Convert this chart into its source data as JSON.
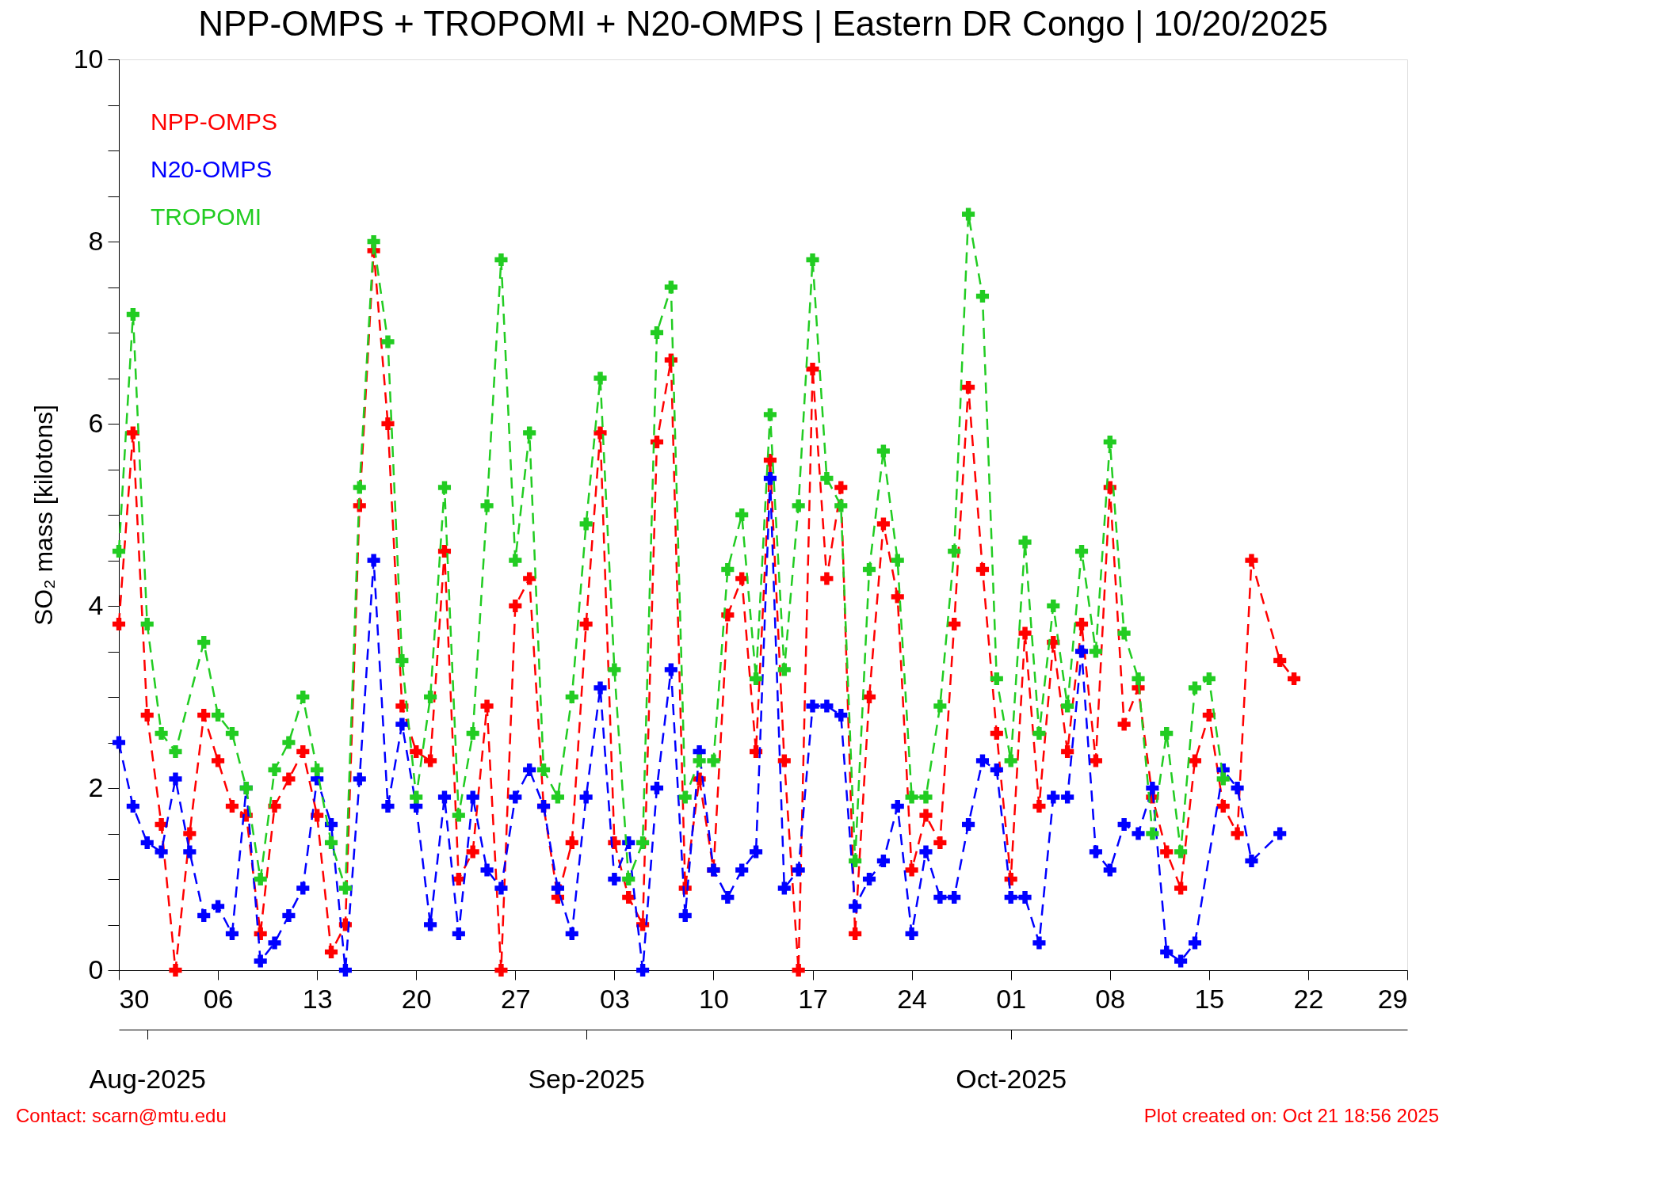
{
  "chart_data": {
    "type": "line",
    "title": "NPP-OMPS + TROPOMI + N20-OMPS | Eastern DR Congo | 10/20/2025",
    "ylabel": "SO₂ mass [kilotons]",
    "xlim": [
      "2025-07-30",
      "2025-10-29"
    ],
    "xticks": [
      {
        "value": "2025-07-30",
        "label": "30"
      },
      {
        "value": "2025-08-06",
        "label": "06"
      },
      {
        "value": "2025-08-13",
        "label": "13"
      },
      {
        "value": "2025-08-20",
        "label": "20"
      },
      {
        "value": "2025-08-27",
        "label": "27"
      },
      {
        "value": "2025-09-03",
        "label": "03"
      },
      {
        "value": "2025-09-10",
        "label": "10"
      },
      {
        "value": "2025-09-17",
        "label": "17"
      },
      {
        "value": "2025-09-24",
        "label": "24"
      },
      {
        "value": "2025-10-01",
        "label": "01"
      },
      {
        "value": "2025-10-08",
        "label": "08"
      },
      {
        "value": "2025-10-15",
        "label": "15"
      },
      {
        "value": "2025-10-22",
        "label": "22"
      },
      {
        "value": "2025-10-29",
        "label": "29"
      }
    ],
    "x2lim": [
      "2025-07-30",
      "2025-10-29"
    ],
    "x2ticks": [
      {
        "value": "2025-08-01",
        "label": "Aug-2025"
      },
      {
        "value": "2025-09-01",
        "label": "Sep-2025"
      },
      {
        "value": "2025-10-01",
        "label": "Oct-2025"
      }
    ],
    "ylim": [
      0,
      10
    ],
    "yticks": [
      0,
      {
        "value": 0.5,
        "label": null
      },
      {
        "value": 1,
        "label": null
      },
      {
        "value": 1.5,
        "label": null
      },
      2,
      {
        "value": 2.5,
        "label": null
      },
      {
        "value": 3,
        "label": null
      },
      {
        "value": 3.5,
        "label": null
      },
      4,
      {
        "value": 4.5,
        "label": null
      },
      {
        "value": 5,
        "label": null
      },
      {
        "value": 5.5,
        "label": null
      },
      6,
      {
        "value": 6.5,
        "label": null
      },
      {
        "value": 7,
        "label": null
      },
      {
        "value": 7.5,
        "label": null
      },
      8,
      {
        "value": 8.5,
        "label": null
      },
      {
        "value": 9,
        "label": null
      },
      {
        "value": 9.5,
        "label": null
      },
      10
    ],
    "grid": false,
    "legend": "top left",
    "marker": "cross",
    "line_style": "dashed",
    "annotations": [
      "Contact: scarn@mtu.edu",
      "Plot created on: Oct 21 18:56 2025"
    ],
    "series": [
      {
        "name": "NPP-OMPS",
        "color": "#ff0000",
        "x": [
          "2025-07-30",
          "2025-07-31",
          "2025-08-01",
          "2025-08-02",
          "2025-08-03",
          "2025-08-04",
          "2025-08-05",
          "2025-08-06",
          "2025-08-07",
          "2025-08-08",
          "2025-08-09",
          "2025-08-10",
          "2025-08-11",
          "2025-08-12",
          "2025-08-13",
          "2025-08-14",
          "2025-08-15",
          "2025-08-16",
          "2025-08-17",
          "2025-08-18",
          "2025-08-19",
          "2025-08-20",
          "2025-08-21",
          "2025-08-22",
          "2025-08-23",
          "2025-08-24",
          "2025-08-25",
          "2025-08-26",
          "2025-08-27",
          "2025-08-28",
          "2025-08-29",
          "2025-08-30",
          "2025-08-31",
          "2025-09-01",
          "2025-09-02",
          "2025-09-03",
          "2025-09-04",
          "2025-09-05",
          "2025-09-06",
          "2025-09-07",
          "2025-09-08",
          "2025-09-09",
          "2025-09-10",
          "2025-09-11",
          "2025-09-12",
          "2025-09-13",
          "2025-09-14",
          "2025-09-15",
          "2025-09-16",
          "2025-09-17",
          "2025-09-18",
          "2025-09-19",
          "2025-09-20",
          "2025-09-21",
          "2025-09-22",
          "2025-09-23",
          "2025-09-24",
          "2025-09-25",
          "2025-09-26",
          "2025-09-27",
          "2025-09-28",
          "2025-09-29",
          "2025-09-30",
          "2025-10-01",
          "2025-10-02",
          "2025-10-03",
          "2025-10-04",
          "2025-10-05",
          "2025-10-06",
          "2025-10-07",
          "2025-10-08",
          "2025-10-09",
          "2025-10-10",
          "2025-10-11",
          "2025-10-12",
          "2025-10-13",
          "2025-10-14",
          "2025-10-15",
          "2025-10-16",
          "2025-10-17",
          "2025-10-18",
          "2025-10-20",
          "2025-10-21"
        ],
        "values": [
          3.8,
          5.9,
          2.8,
          1.6,
          0,
          1.5,
          2.8,
          2.3,
          1.8,
          1.7,
          0.4,
          1.8,
          2.1,
          2.4,
          1.7,
          0.2,
          0.5,
          5.1,
          7.9,
          6.0,
          2.9,
          2.4,
          2.3,
          4.6,
          1.0,
          1.3,
          2.9,
          0,
          4.0,
          4.3,
          1.8,
          0.8,
          1.4,
          3.8,
          5.9,
          1.4,
          0.8,
          0.5,
          5.8,
          6.7,
          0.9,
          2.1,
          1.1,
          3.9,
          4.3,
          2.4,
          5.6,
          2.3,
          0,
          6.6,
          4.3,
          5.3,
          0.4,
          3.0,
          4.9,
          4.1,
          1.1,
          1.7,
          1.4,
          3.8,
          6.4,
          4.4,
          2.6,
          1.0,
          3.7,
          1.8,
          3.6,
          2.4,
          3.8,
          2.3,
          5.3,
          2.7,
          3.1,
          1.9,
          1.3,
          0.9,
          2.3,
          2.8,
          1.8,
          1.5,
          4.5,
          3.4,
          3.2
        ]
      },
      {
        "name": "N20-OMPS",
        "color": "#0000ff",
        "x": [
          "2025-07-30",
          "2025-07-31",
          "2025-08-01",
          "2025-08-02",
          "2025-08-03",
          "2025-08-04",
          "2025-08-05",
          "2025-08-06",
          "2025-08-07",
          "2025-08-08",
          "2025-08-09",
          "2025-08-10",
          "2025-08-11",
          "2025-08-12",
          "2025-08-13",
          "2025-08-14",
          "2025-08-15",
          "2025-08-16",
          "2025-08-17",
          "2025-08-18",
          "2025-08-19",
          "2025-08-20",
          "2025-08-21",
          "2025-08-22",
          "2025-08-23",
          "2025-08-24",
          "2025-08-25",
          "2025-08-26",
          "2025-08-27",
          "2025-08-28",
          "2025-08-29",
          "2025-08-30",
          "2025-08-31",
          "2025-09-01",
          "2025-09-02",
          "2025-09-03",
          "2025-09-04",
          "2025-09-05",
          "2025-09-06",
          "2025-09-07",
          "2025-09-08",
          "2025-09-09",
          "2025-09-10",
          "2025-09-11",
          "2025-09-12",
          "2025-09-13",
          "2025-09-14",
          "2025-09-15",
          "2025-09-16",
          "2025-09-17",
          "2025-09-18",
          "2025-09-19",
          "2025-09-20",
          "2025-09-21",
          "2025-09-22",
          "2025-09-23",
          "2025-09-24",
          "2025-09-25",
          "2025-09-26",
          "2025-09-27",
          "2025-09-28",
          "2025-09-29",
          "2025-09-30",
          "2025-10-01",
          "2025-10-02",
          "2025-10-03",
          "2025-10-04",
          "2025-10-05",
          "2025-10-06",
          "2025-10-07",
          "2025-10-08",
          "2025-10-09",
          "2025-10-10",
          "2025-10-11",
          "2025-10-12",
          "2025-10-13",
          "2025-10-14",
          "2025-10-16",
          "2025-10-17",
          "2025-10-18",
          "2025-10-20"
        ],
        "values": [
          2.5,
          1.8,
          1.4,
          1.3,
          2.1,
          1.3,
          0.6,
          0.7,
          0.4,
          2.0,
          0.1,
          0.3,
          0.6,
          0.9,
          2.1,
          1.6,
          0,
          2.1,
          4.5,
          1.8,
          2.7,
          1.8,
          0.5,
          1.9,
          0.4,
          1.9,
          1.1,
          0.9,
          1.9,
          2.2,
          1.8,
          0.9,
          0.4,
          1.9,
          3.1,
          1.0,
          1.4,
          0,
          2.0,
          3.3,
          0.6,
          2.4,
          1.1,
          0.8,
          1.1,
          1.3,
          5.4,
          0.9,
          1.1,
          2.9,
          2.9,
          2.8,
          0.7,
          1.0,
          1.2,
          1.8,
          0.4,
          1.3,
          0.8,
          0.8,
          1.6,
          2.3,
          2.2,
          0.8,
          0.8,
          0.3,
          1.9,
          1.9,
          3.5,
          1.3,
          1.1,
          1.6,
          1.5,
          2.0,
          0.2,
          0.1,
          0.3,
          2.2,
          2.0,
          1.2,
          1.5
        ]
      },
      {
        "name": "TROPOMI",
        "color": "#22cc22",
        "x": [
          "2025-07-30",
          "2025-07-31",
          "2025-08-01",
          "2025-08-02",
          "2025-08-03",
          "2025-08-05",
          "2025-08-06",
          "2025-08-07",
          "2025-08-08",
          "2025-08-09",
          "2025-08-10",
          "2025-08-11",
          "2025-08-12",
          "2025-08-13",
          "2025-08-14",
          "2025-08-15",
          "2025-08-16",
          "2025-08-17",
          "2025-08-18",
          "2025-08-19",
          "2025-08-20",
          "2025-08-21",
          "2025-08-22",
          "2025-08-23",
          "2025-08-24",
          "2025-08-25",
          "2025-08-26",
          "2025-08-27",
          "2025-08-28",
          "2025-08-29",
          "2025-08-30",
          "2025-08-31",
          "2025-09-01",
          "2025-09-02",
          "2025-09-03",
          "2025-09-04",
          "2025-09-05",
          "2025-09-06",
          "2025-09-07",
          "2025-09-08",
          "2025-09-09",
          "2025-09-10",
          "2025-09-11",
          "2025-09-12",
          "2025-09-13",
          "2025-09-14",
          "2025-09-15",
          "2025-09-16",
          "2025-09-17",
          "2025-09-18",
          "2025-09-19",
          "2025-09-20",
          "2025-09-21",
          "2025-09-22",
          "2025-09-23",
          "2025-09-24",
          "2025-09-25",
          "2025-09-26",
          "2025-09-27",
          "2025-09-28",
          "2025-09-29",
          "2025-09-30",
          "2025-10-01",
          "2025-10-02",
          "2025-10-03",
          "2025-10-04",
          "2025-10-05",
          "2025-10-06",
          "2025-10-07",
          "2025-10-08",
          "2025-10-09",
          "2025-10-10",
          "2025-10-11",
          "2025-10-12",
          "2025-10-13",
          "2025-10-14",
          "2025-10-15",
          "2025-10-16"
        ],
        "values": [
          4.6,
          7.2,
          3.8,
          2.6,
          2.4,
          3.6,
          2.8,
          2.6,
          2.0,
          1.0,
          2.2,
          2.5,
          3.0,
          2.2,
          1.4,
          0.9,
          5.3,
          8.0,
          6.9,
          3.4,
          1.9,
          3.0,
          5.3,
          1.7,
          2.6,
          5.1,
          7.8,
          4.5,
          5.9,
          2.2,
          1.9,
          3.0,
          4.9,
          6.5,
          3.3,
          1.0,
          1.4,
          7.0,
          7.5,
          1.9,
          2.3,
          2.3,
          4.4,
          5.0,
          3.2,
          6.1,
          3.3,
          5.1,
          7.8,
          5.4,
          5.1,
          1.2,
          4.4,
          5.7,
          4.5,
          1.9,
          1.9,
          2.9,
          4.6,
          8.3,
          7.4,
          3.2,
          2.3,
          4.7,
          2.6,
          4.0,
          2.9,
          4.6,
          3.5,
          5.8,
          3.7,
          3.2,
          1.5,
          2.6,
          1.3,
          3.1,
          3.2,
          2.1
        ]
      }
    ]
  }
}
